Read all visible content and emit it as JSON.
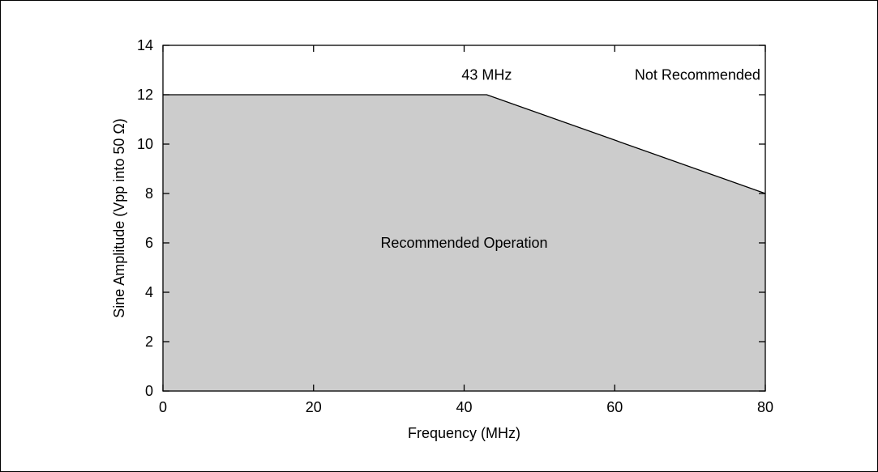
{
  "chart_data": {
    "type": "area",
    "xlabel": "Frequency (MHz)",
    "ylabel": "Sine Amplitude (Vpp into 50 Ω)",
    "xlim": [
      0,
      80
    ],
    "ylim": [
      0,
      14
    ],
    "x_ticks": [
      0,
      20,
      40,
      60,
      80
    ],
    "y_ticks": [
      0,
      2,
      4,
      6,
      8,
      10,
      12,
      14
    ],
    "grid": false,
    "series": [
      {
        "x": [
          0,
          43,
          80
        ],
        "values": [
          12,
          12,
          8
        ]
      }
    ],
    "fill_color": "#cccccc",
    "line_color": "#000000",
    "annotations": [
      {
        "text": "43 MHz",
        "x": 43,
        "y": 12.6
      },
      {
        "text": "Not Recommended",
        "x": 71,
        "y": 12.6
      },
      {
        "text": "Recommended Operation",
        "x": 40,
        "y": 5.8
      }
    ]
  }
}
